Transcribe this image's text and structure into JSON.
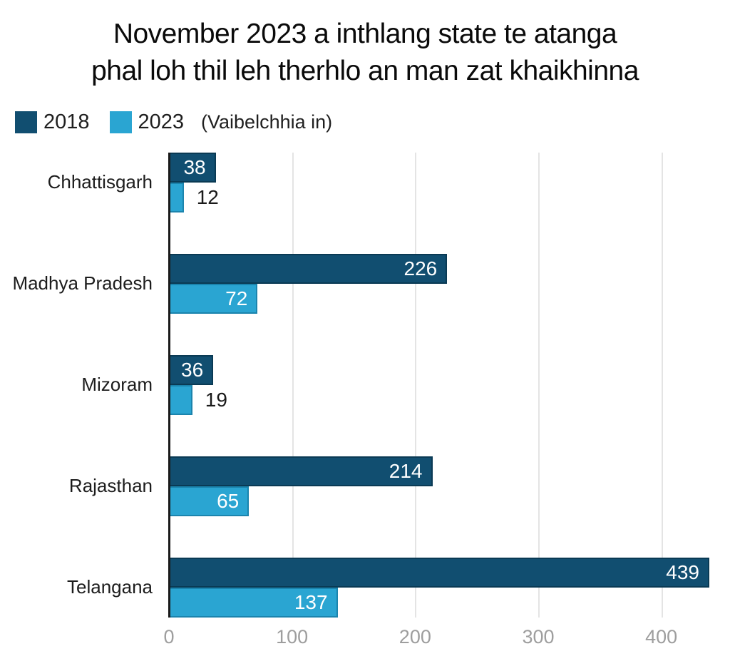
{
  "title": {
    "line1": "November 2023 a inthlang state te atanga",
    "line2": "phal loh thil leh therhlo an man zat khaikhinna"
  },
  "legend": {
    "series1_label": "2018",
    "series2_label": "2023",
    "note": "(Vaibelchhia in)"
  },
  "colors": {
    "series1": "#114e70",
    "series1_border": "#0a3a54",
    "series2": "#2aa5d2",
    "series2_border": "#1b84ad",
    "axis_line": "#1a1a1a",
    "gridline": "#e4e4e4",
    "tick_label": "#9e9e9e",
    "inside_value_label": "#ffffff",
    "outside_value_label": "#1a1a1a"
  },
  "chart_data": {
    "type": "bar",
    "orientation": "horizontal",
    "title": "November 2023 a inthlang state te atanga phal loh thil leh therhlo an man zat khaikhinna",
    "categories": [
      "Chhattisgarh",
      "Madhya Pradesh",
      "Mizoram",
      "Rajasthan",
      "Telangana"
    ],
    "series": [
      {
        "name": "2018",
        "color": "#114e70",
        "values": [
          38,
          226,
          36,
          214,
          439
        ]
      },
      {
        "name": "2023",
        "color": "#2aa5d2",
        "values": [
          12,
          72,
          19,
          65,
          137
        ]
      }
    ],
    "xlabel": "",
    "ylabel": "",
    "xlim": [
      0,
      450
    ],
    "xticks": [
      0,
      100,
      200,
      300,
      400
    ],
    "grid": true,
    "legend_position": "top-left",
    "value_labels": true,
    "legend_note": "(Vaibelchhia in)"
  }
}
